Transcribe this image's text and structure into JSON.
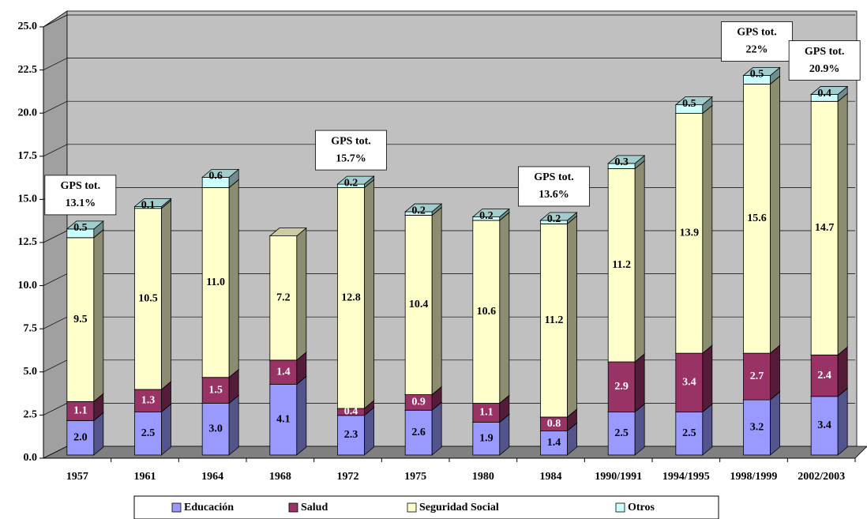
{
  "chart_data": {
    "type": "stacked-bar-3d",
    "categories": [
      "1957",
      "1961",
      "1964",
      "1968",
      "1972",
      "1975",
      "1980",
      "1984",
      "1990/1991",
      "1994/1995",
      "1998/1999",
      "2002/2003"
    ],
    "series": [
      {
        "name": "Educación",
        "color": "#9999ff",
        "values": [
          2.0,
          2.5,
          3.0,
          4.1,
          2.3,
          2.6,
          1.9,
          1.4,
          2.5,
          2.5,
          3.2,
          3.4
        ],
        "value_labels": [
          "2.0",
          "2.5",
          "3.0",
          "4.1",
          "2.3",
          "2.6",
          "1.9",
          "1.4",
          "2.5",
          "2.5",
          "3.2",
          "3.4"
        ]
      },
      {
        "name": "Salud",
        "color": "#993366",
        "values": [
          1.1,
          1.3,
          1.5,
          1.4,
          0.4,
          0.9,
          1.1,
          0.8,
          2.9,
          3.4,
          2.7,
          2.4
        ],
        "value_labels": [
          "1.1",
          "1.3",
          "1.5",
          "1.4",
          "0.4",
          "0.9",
          "1.1",
          "0.8",
          "2.9",
          "3.4",
          "2.7",
          "2.4"
        ]
      },
      {
        "name": "Seguridad Social",
        "color": "#ffffcc",
        "values": [
          9.5,
          10.5,
          11.0,
          7.2,
          12.8,
          10.4,
          10.6,
          11.2,
          11.2,
          13.9,
          15.6,
          14.7
        ],
        "value_labels": [
          "9.5",
          "10.5",
          "11.0",
          "7.2",
          "12.8",
          "10.4",
          "10.6",
          "11.2",
          "11.2",
          "13.9",
          "15.6",
          "14.7"
        ]
      },
      {
        "name": "Otros",
        "color": "#ccffff",
        "values": [
          0.5,
          0.1,
          0.6,
          null,
          0.2,
          0.2,
          0.2,
          0.2,
          0.3,
          0.5,
          0.5,
          0.4
        ],
        "value_labels": [
          "0.5",
          "0.1",
          "0.6",
          null,
          "0.2",
          "0.2",
          "0.2",
          "0.2",
          "0.3",
          "0.5",
          "0.5",
          "0.4"
        ]
      }
    ],
    "ylim": [
      0,
      25
    ],
    "yticks": [
      {
        "value": 0,
        "label": "0.0"
      },
      {
        "value": 2.5,
        "label": "2.5"
      },
      {
        "value": 5,
        "label": "5.0"
      },
      {
        "value": 7.5,
        "label": "7.5"
      },
      {
        "value": 10,
        "label": "10.0"
      },
      {
        "value": 12.5,
        "label": "12.5"
      },
      {
        "value": 15,
        "label": "15.0"
      },
      {
        "value": 17.5,
        "label": "17.5"
      },
      {
        "value": 20,
        "label": "20.0"
      },
      {
        "value": 22.5,
        "label": "22.5"
      },
      {
        "value": 25,
        "label": "25.0"
      }
    ],
    "grid": true,
    "legend": "bottom",
    "annotations": [
      {
        "x": "1957",
        "lines": [
          "GPS tot.",
          "13.1%"
        ]
      },
      {
        "x": "1972",
        "lines": [
          "GPS tot.",
          "15.7%"
        ]
      },
      {
        "x": "1984",
        "lines": [
          "GPS tot.",
          "13.6%"
        ]
      },
      {
        "x": "1998/1999",
        "lines": [
          "GPS tot.",
          "22%"
        ]
      },
      {
        "x": "2002/2003",
        "lines": [
          "GPS tot.",
          "20.9%"
        ]
      }
    ]
  }
}
